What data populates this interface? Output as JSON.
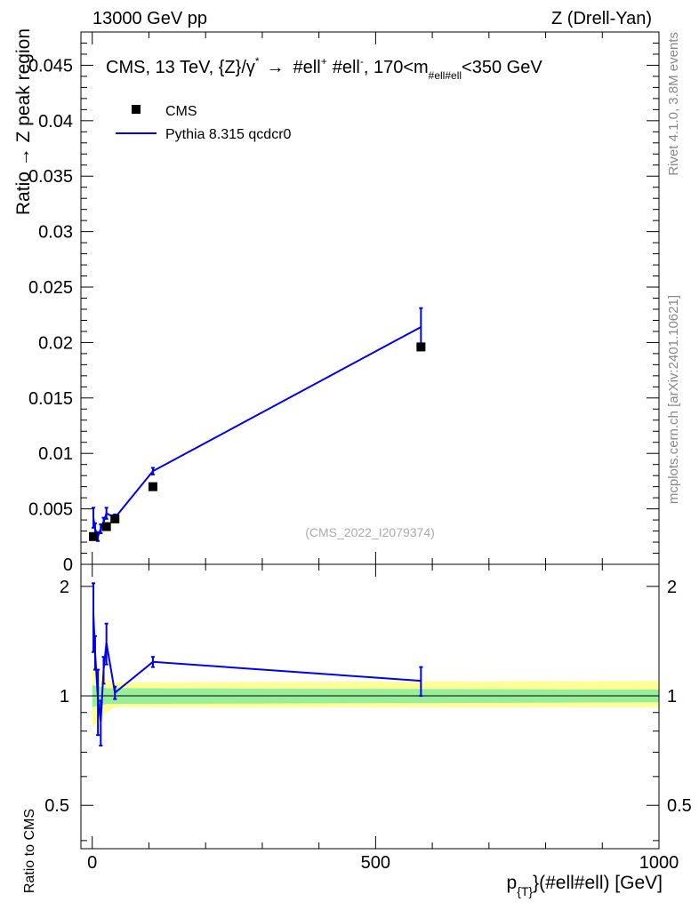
{
  "header": {
    "left": "13000 GeV pp",
    "right": "Z (Drell-Yan)"
  },
  "side_labels": {
    "rivet": "Rivet 4.1.0,  3.8M events",
    "mcplots": "mcplots.cern.ch [arXiv:2401.10621]"
  },
  "chart_data": {
    "type": "scatter",
    "title_main": "CMS, 13 TeV, {Z}/γ",
    "title_sup": "*",
    "title_arrow": "→",
    "title_l1": "#ell",
    "title_l1_sup": "+",
    "title_l2": "#ell",
    "title_l2_sup": "-",
    "title_range_a": ", 170<m",
    "title_range_sub": "#ell#ell",
    "title_range_b": "<350 GeV",
    "ylabel": "Ratio → Z peak region",
    "ratio_ylabel": "Ratio to CMS",
    "xlabel_p": "p",
    "xlabel_sub": "{T}",
    "xlabel_rest": "}(#ell#ell) [GeV]",
    "watermark": "(CMS_2022_I2079374)",
    "xlim": [
      -20,
      1000
    ],
    "ylim": [
      0,
      0.048
    ],
    "ratio_ylim": [
      0.38,
      2.3
    ],
    "ratio_scale": "log",
    "x_ticks": [
      0,
      500,
      1000
    ],
    "x_tick_labels": [
      "0",
      "500",
      "1000"
    ],
    "y_ticks": [
      0,
      0.005,
      0.01,
      0.015,
      0.02,
      0.025,
      0.03,
      0.035,
      0.04,
      0.045
    ],
    "y_tick_labels": [
      "0",
      "0.005",
      "0.01",
      "0.015",
      "0.02",
      "0.025",
      "0.03",
      "0.035",
      "0.04",
      "0.045"
    ],
    "ratio_ticks": [
      0.5,
      1,
      2
    ],
    "ratio_tick_labels": [
      "0.5",
      "1",
      "2"
    ],
    "legend": {
      "placement": "top-left",
      "data_label": "CMS",
      "mc_label": "Pythia 8.315 qcdcr0"
    },
    "colors": {
      "data": "#000000",
      "mc": "#0000ee",
      "band_inner": "#99ee99",
      "band_outer": "#ffff99"
    },
    "data": {
      "name": "CMS",
      "x": [
        2,
        25,
        40,
        107,
        580
      ],
      "y": [
        0.0025,
        0.0034,
        0.0041,
        0.007,
        0.0196
      ]
    },
    "mc": {
      "name": "Pythia 8.315 qcdcr0",
      "x": [
        2,
        5,
        10,
        15,
        20,
        25,
        40,
        107,
        580
      ],
      "y": [
        0.0042,
        0.0032,
        0.0025,
        0.0032,
        0.0038,
        0.0046,
        0.0042,
        0.0084,
        0.0214
      ],
      "yerr": [
        0.0009,
        0.0005,
        0.0004,
        0.0004,
        0.0004,
        0.0005,
        0.0003,
        0.0003,
        0.0017
      ],
      "ratio": [
        1.68,
        1.32,
        0.98,
        0.85,
        1.18,
        1.4,
        1.02,
        1.24,
        1.1
      ],
      "ratio_err": [
        0.36,
        0.14,
        0.2,
        0.12,
        0.1,
        0.18,
        0.04,
        0.04,
        0.1
      ]
    },
    "band": {
      "x_start": 0,
      "x_end": 1000,
      "inner": [
        [
          0,
          0.93,
          1.07
        ],
        [
          25,
          0.95,
          1.05
        ],
        [
          1000,
          0.96,
          1.04
        ]
      ],
      "outer": [
        [
          0,
          0.82,
          1.22
        ],
        [
          25,
          0.9,
          1.11
        ],
        [
          40,
          0.93,
          1.09
        ],
        [
          1000,
          0.93,
          1.1
        ]
      ]
    }
  }
}
